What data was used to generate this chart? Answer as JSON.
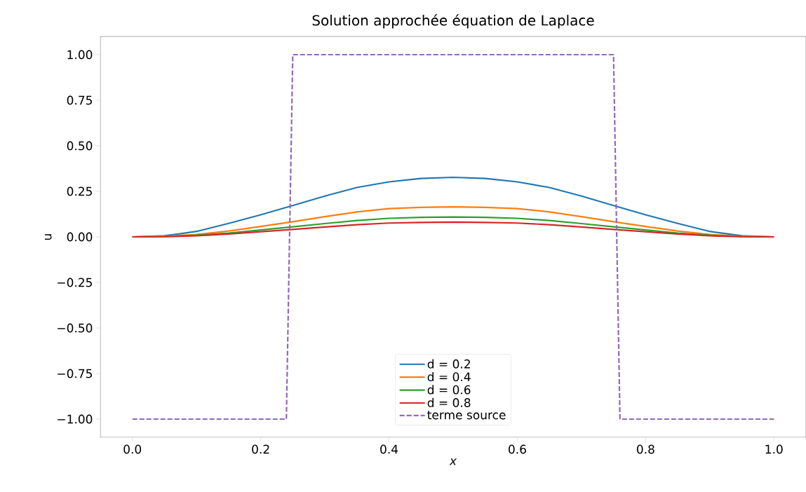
{
  "chart_data": {
    "type": "line",
    "title": "Solution approchée équation de Laplace",
    "xlabel": "x",
    "ylabel": "u",
    "xlim": [
      -0.05,
      1.05
    ],
    "ylim": [
      -1.1,
      1.1
    ],
    "xticks": [
      {
        "value": 0,
        "label": "0.0"
      },
      {
        "value": 0.2,
        "label": "0.2"
      },
      {
        "value": 0.4,
        "label": "0.4"
      },
      {
        "value": 0.6,
        "label": "0.6"
      },
      {
        "value": 0.8,
        "label": "0.8"
      },
      {
        "value": 1,
        "label": "1.0"
      }
    ],
    "yticks": [
      {
        "value": -1,
        "label": "−1.00"
      },
      {
        "value": -0.75,
        "label": "−0.75"
      },
      {
        "value": -0.5,
        "label": "−0.50"
      },
      {
        "value": -0.25,
        "label": "−0.25"
      },
      {
        "value": 0,
        "label": "0.00"
      },
      {
        "value": 0.25,
        "label": "0.25"
      },
      {
        "value": 0.5,
        "label": "0.50"
      },
      {
        "value": 0.75,
        "label": "0.75"
      },
      {
        "value": 1,
        "label": "1.00"
      }
    ],
    "x": [
      0,
      0.05,
      0.1,
      0.15,
      0.2,
      0.25,
      0.3,
      0.35,
      0.4,
      0.45,
      0.5,
      0.55,
      0.6,
      0.65,
      0.7,
      0.75,
      0.8,
      0.85,
      0.9,
      0.95,
      1
    ],
    "series": [
      {
        "name": "d = 0.2",
        "color": "#1f77b4",
        "values": [
          0,
          0.006,
          0.03,
          0.074,
          0.121,
          0.172,
          0.224,
          0.271,
          0.302,
          0.321,
          0.327,
          0.321,
          0.302,
          0.271,
          0.224,
          0.172,
          0.121,
          0.074,
          0.03,
          0.006,
          0
        ]
      },
      {
        "name": "d = 0.4",
        "color": "#ff7f0e",
        "values": [
          0,
          0.003,
          0.013,
          0.032,
          0.057,
          0.083,
          0.111,
          0.137,
          0.155,
          0.162,
          0.165,
          0.162,
          0.155,
          0.137,
          0.111,
          0.083,
          0.057,
          0.032,
          0.013,
          0.003,
          0
        ]
      },
      {
        "name": "d = 0.6",
        "color": "#2ca02c",
        "values": [
          0,
          0.002,
          0.009,
          0.021,
          0.038,
          0.055,
          0.073,
          0.09,
          0.102,
          0.107,
          0.109,
          0.107,
          0.102,
          0.09,
          0.073,
          0.055,
          0.038,
          0.021,
          0.009,
          0.002,
          0
        ]
      },
      {
        "name": "d = 0.8",
        "color": "#d62728",
        "values": [
          0,
          0.001,
          0.006,
          0.016,
          0.028,
          0.041,
          0.054,
          0.067,
          0.076,
          0.079,
          0.081,
          0.079,
          0.076,
          0.067,
          0.054,
          0.041,
          0.028,
          0.016,
          0.006,
          0.001,
          0
        ]
      },
      {
        "name": "terme source",
        "color": "#9467bd",
        "line_style": "dashed",
        "x": [
          0,
          0.24,
          0.25,
          0.75,
          0.76,
          1
        ],
        "values": [
          -1,
          -1,
          1,
          1,
          -1,
          -1
        ]
      }
    ],
    "legend": "bottom",
    "grid": false,
    "marker": "none"
  }
}
